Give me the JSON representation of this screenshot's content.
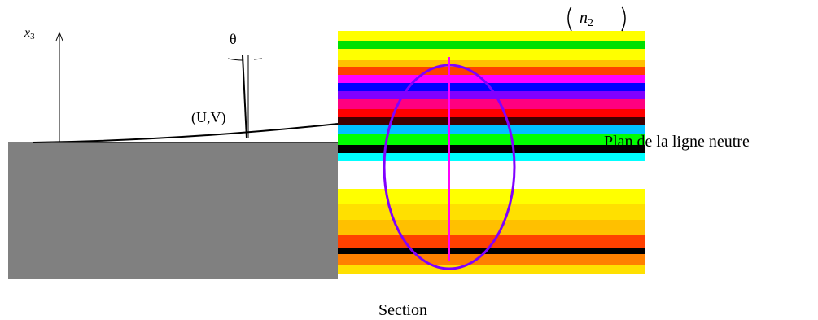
{
  "axis_label": {
    "text": "x",
    "subscript": "3"
  },
  "angle_label": "θ",
  "point_label": "(U,V)",
  "normal_label": {
    "text": "n",
    "subscript": "2"
  },
  "plane_label": "Plan de la ligne neutre",
  "section_label": "Section"
}
